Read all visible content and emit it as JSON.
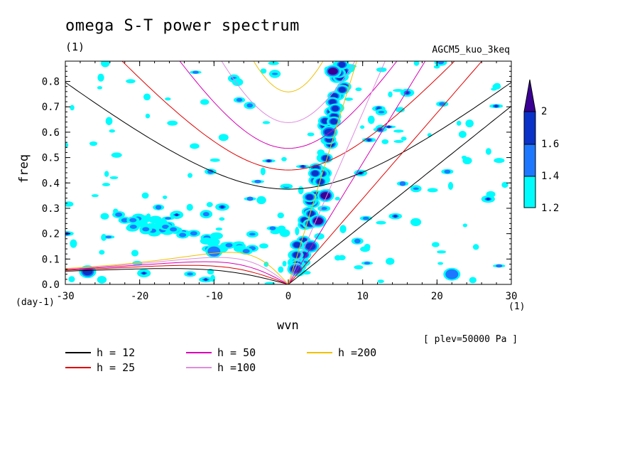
{
  "header": {
    "title": "omega S-T power spectrum",
    "title_unit": "(1)",
    "model": "AGCM5_kuo_3keq"
  },
  "axes": {
    "xlabel": "wvn",
    "ylabel": "freq",
    "x_unit_left": "(day-1)",
    "x_unit_right": "(1)",
    "level_note": "[ plev=50000 Pa ]"
  },
  "colorbar": {
    "levels": [
      "2",
      "1.6",
      "1.4",
      "1.2"
    ],
    "colors": [
      "#3a0094",
      "#0a32c8",
      "#1e78ff",
      "#00fcfc"
    ]
  },
  "legend": [
    {
      "label": "h = 12",
      "color": "#000000"
    },
    {
      "label": "h = 25",
      "color": "#e00000"
    },
    {
      "label": "h = 50",
      "color": "#d800b4"
    },
    {
      "label": "h =100",
      "color": "#e08ce0"
    },
    {
      "label": "h =200",
      "color": "#f0c000"
    }
  ],
  "chart_data": {
    "type": "heatmap",
    "title": "omega S-T power spectrum",
    "xlabel": "wvn",
    "ylabel": "freq",
    "xlim": [
      -30,
      30
    ],
    "ylim": [
      0,
      0.88
    ],
    "x_ticks": [
      -30,
      -20,
      -10,
      0,
      10,
      20,
      30
    ],
    "y_ticks": [
      0.0,
      0.1,
      0.2,
      0.3,
      0.4,
      0.5,
      0.6,
      0.7,
      0.8
    ],
    "contour_levels": [
      1.2,
      1.4,
      1.6,
      2
    ],
    "dispersion_curves": [
      {
        "name": "h = 12",
        "equivalent_depth": 12
      },
      {
        "name": "h = 25",
        "equivalent_depth": 25
      },
      {
        "name": "h = 50",
        "equivalent_depth": 50
      },
      {
        "name": "h =100",
        "equivalent_depth": 100
      },
      {
        "name": "h =200",
        "equivalent_depth": 200
      }
    ],
    "power_regions": [
      {
        "x": 6,
        "y": 0.84,
        "level": 2
      },
      {
        "x": 5.5,
        "y": 0.6,
        "level": 1.6
      },
      {
        "x": 5,
        "y": 0.35,
        "level": 2
      },
      {
        "x": 4,
        "y": 0.25,
        "level": 2
      },
      {
        "x": 3,
        "y": 0.15,
        "level": 1.6
      },
      {
        "x": 1,
        "y": 0.06,
        "level": 1.6
      },
      {
        "x": -10,
        "y": 0.13,
        "level": 1.4
      },
      {
        "x": -27,
        "y": 0.05,
        "level": 1.6
      },
      {
        "x": 22,
        "y": 0.04,
        "level": 1.4
      }
    ]
  }
}
